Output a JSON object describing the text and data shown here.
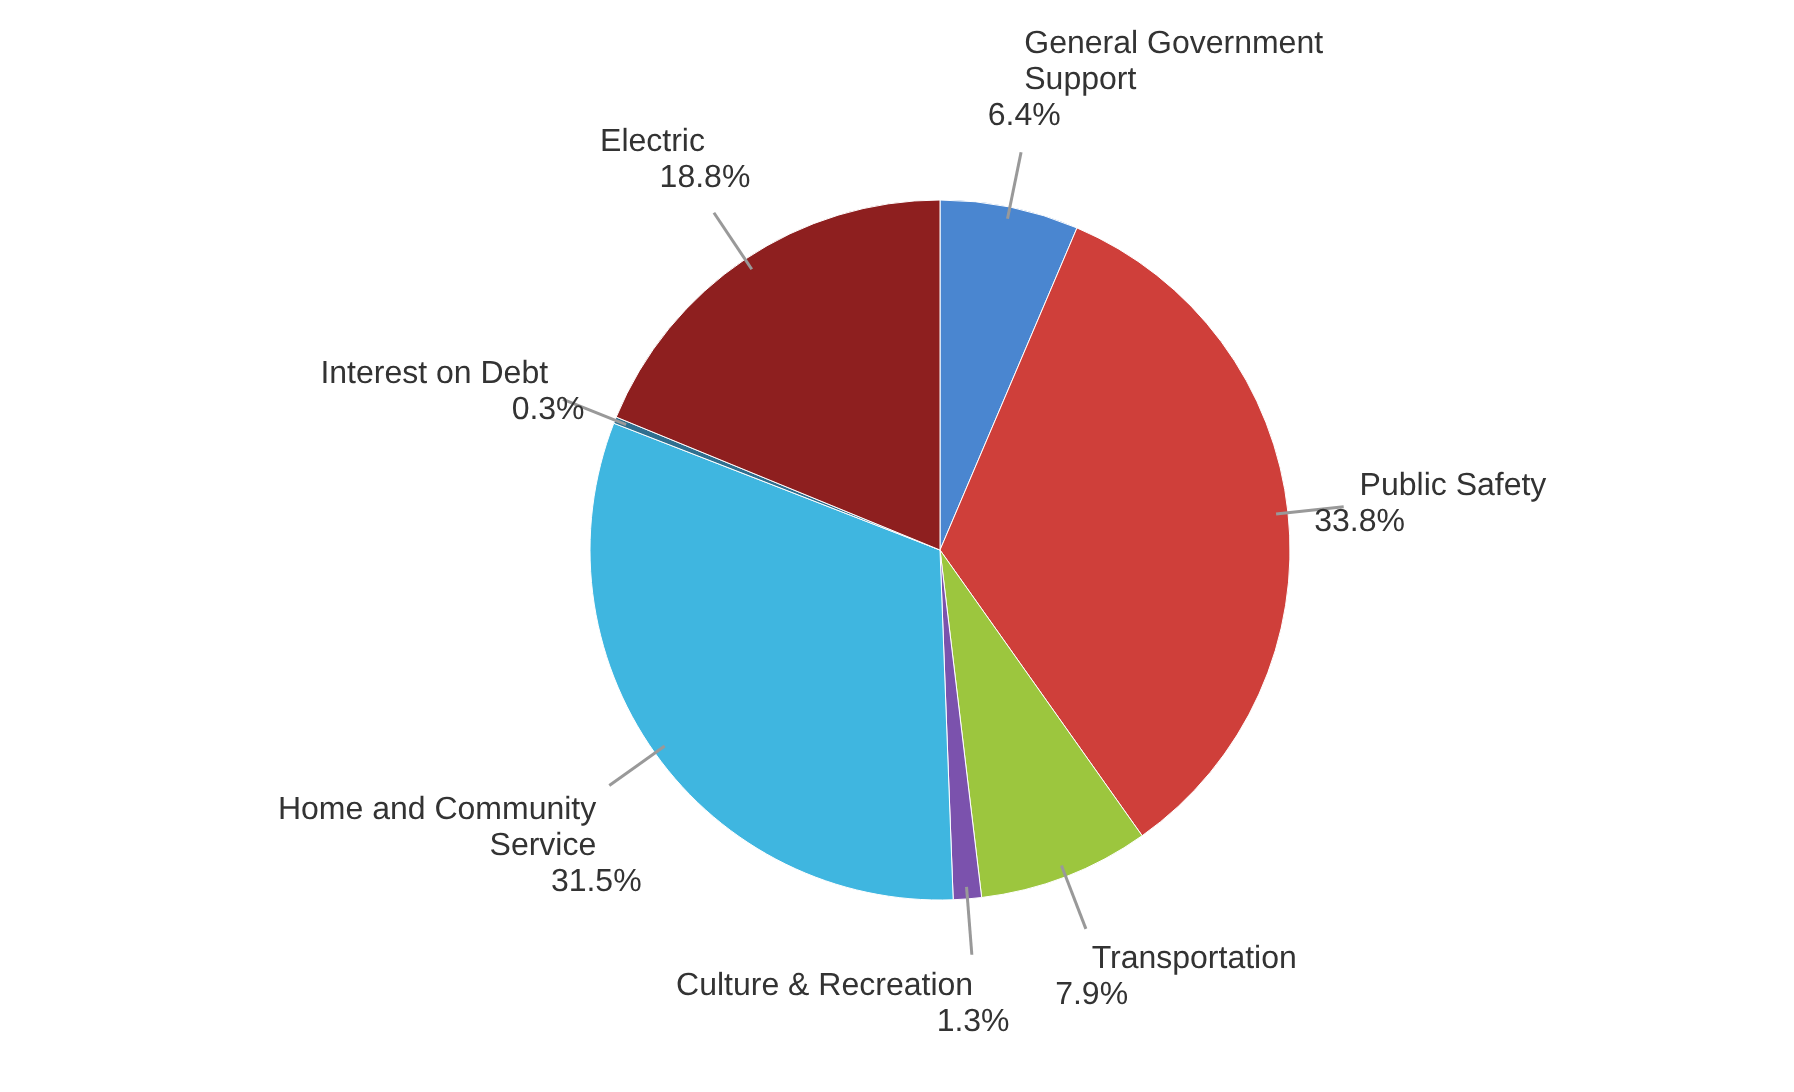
{
  "chart_data": {
    "type": "pie",
    "categories": [
      "General Government Support",
      "Public Safety",
      "Transportation",
      "Culture & Recreation",
      "Home and Community Service",
      "Interest on Debt",
      "Electric"
    ],
    "values": [
      6.4,
      33.8,
      7.9,
      1.3,
      31.5,
      0.3,
      18.8
    ],
    "value_labels": [
      "6.4%",
      "33.8%",
      "7.9%",
      "1.3%",
      "31.5%",
      "0.3%",
      "18.8%"
    ],
    "colors": [
      "#4a86d0",
      "#cf3f3a",
      "#9cc63e",
      "#7b52ad",
      "#3fb6e0",
      "#2f6f8f",
      "#8e1f1f"
    ]
  }
}
